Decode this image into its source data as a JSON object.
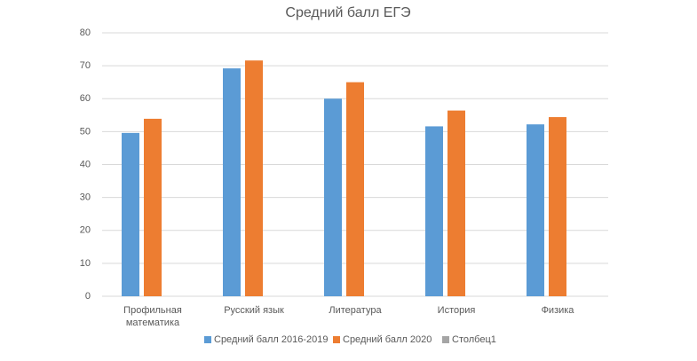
{
  "chart_data": {
    "type": "bar",
    "title": "Средний балл ЕГЭ",
    "categories": [
      "Профильная математика",
      "Русский язык",
      "Литература",
      "История",
      "Физика"
    ],
    "series": [
      {
        "name": "Средний балл 2016-2019",
        "color": "#5b9bd5",
        "values": [
          49.6,
          69.2,
          60.0,
          51.6,
          52.2
        ]
      },
      {
        "name": "Средний балл 2020",
        "color": "#ed7d31",
        "values": [
          53.9,
          71.6,
          65.0,
          56.4,
          54.4
        ]
      },
      {
        "name": "Столбец1",
        "color": "#a5a5a5",
        "values": [
          null,
          null,
          null,
          null,
          null
        ]
      }
    ],
    "ylim": [
      0,
      80
    ],
    "yticks": [
      0,
      10,
      20,
      30,
      40,
      50,
      60,
      70,
      80
    ],
    "grid": true,
    "legend": "bottom"
  }
}
